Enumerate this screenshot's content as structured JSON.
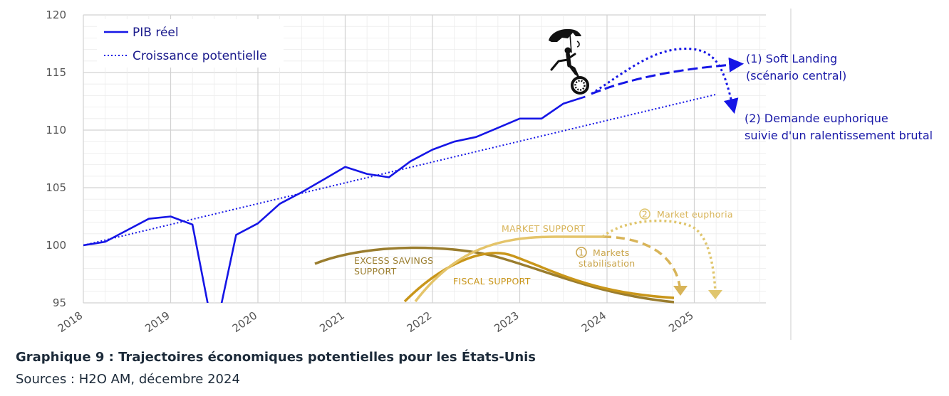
{
  "chart_data": {
    "type": "line",
    "ylim": [
      95,
      120
    ],
    "yticks": [
      "95",
      "100",
      "105",
      "110",
      "115",
      "120"
    ],
    "xticks": [
      "2018",
      "2019",
      "2020",
      "2021",
      "2022",
      "2023",
      "2024",
      "2025"
    ],
    "grid": true,
    "legend_position": "top-left",
    "series": [
      {
        "name": "PIB réel",
        "style": "solid",
        "color": "#1515e6",
        "x": [
          2018.0,
          2018.25,
          2018.5,
          2018.75,
          2019.0,
          2019.25,
          2019.5,
          2019.75,
          2020.0,
          2020.25,
          2020.5,
          2020.75,
          2021.0,
          2021.25,
          2021.5,
          2021.75,
          2022.0,
          2022.25,
          2022.5,
          2022.75,
          2023.0,
          2023.25,
          2023.5,
          2023.75
        ],
        "y": [
          100.0,
          100.3,
          101.3,
          102.3,
          102.5,
          101.8,
          92.0,
          100.9,
          101.9,
          103.6,
          104.6,
          105.7,
          106.8,
          106.2,
          105.9,
          107.3,
          108.3,
          109.0,
          109.4,
          110.2,
          111.0,
          111.0,
          112.3,
          112.9
        ]
      },
      {
        "name": "Croissance potentielle",
        "style": "dotted",
        "color": "#1515e6",
        "x": [
          2018.0,
          2025.25
        ],
        "y": [
          100.0,
          113.1
        ]
      }
    ],
    "scenarios": [
      {
        "label_line1": "(1) Soft Landing",
        "label_line2": "(scénario central)"
      },
      {
        "label_line1": "(2) Demande euphorique",
        "label_line2": "suivie d'un ralentissement brutal"
      }
    ],
    "support_curves": [
      {
        "label_line1": "EXCESS SAVINGS",
        "label_line2": "SUPPORT",
        "color": "#9a7d2e"
      },
      {
        "label_line1": "FISCAL SUPPORT",
        "label_line2": "",
        "color": "#c9961a"
      },
      {
        "label_line1": "MARKET SUPPORT",
        "label_line2": "",
        "color": "#e4c46a"
      }
    ],
    "support_annotations": [
      {
        "number": "1",
        "label_line1": "Markets",
        "label_line2": "stabilisation",
        "color": "#c9a44a"
      },
      {
        "number": "2",
        "label_line1": "Market euphoria",
        "label_line2": "",
        "color": "#e0c66e"
      }
    ]
  },
  "caption": {
    "title": "Graphique 9 : Trajectoires économiques potentielles pour les États-Unis",
    "source": "Sources : H2O AM, décembre 2024"
  }
}
